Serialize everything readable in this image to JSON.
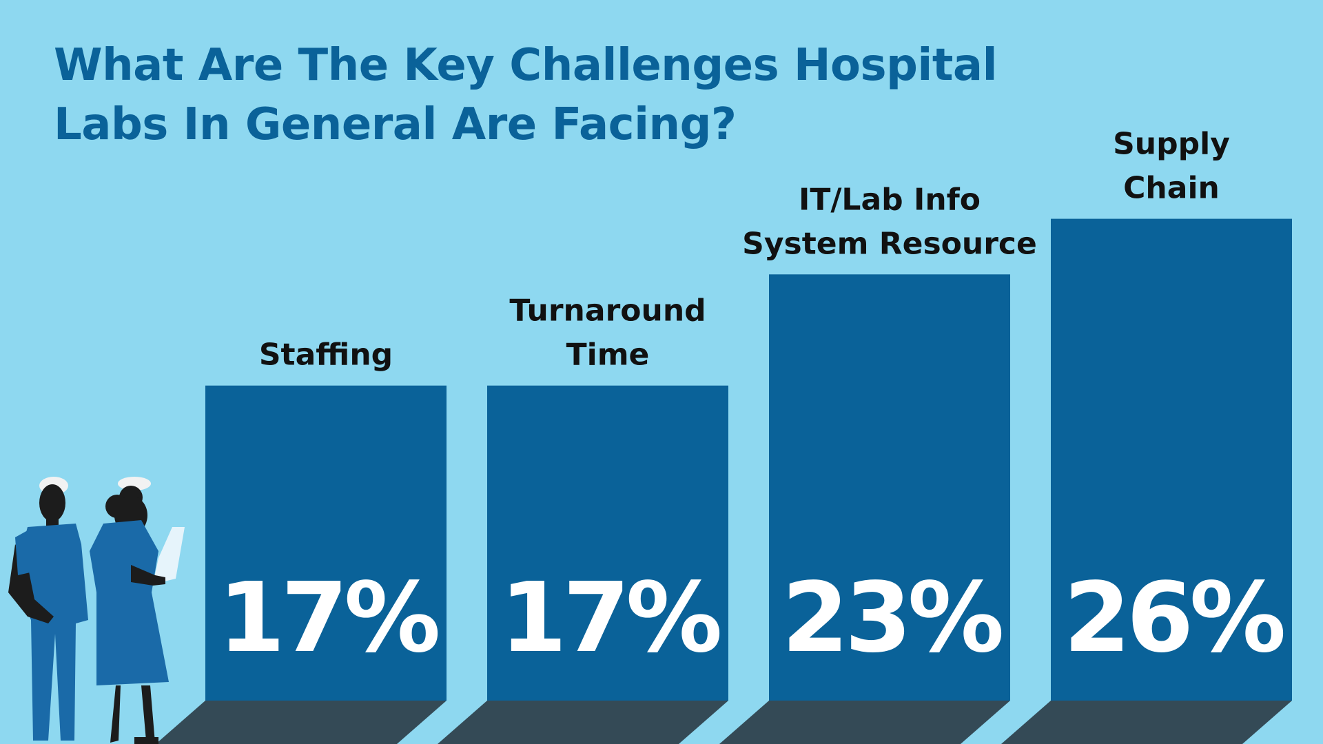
{
  "title_lines": [
    "What Are The Key Challenges Hospital",
    "Labs In General Are Facing?"
  ],
  "colors": {
    "background": "#8ed8f0",
    "bar": "#0a6299",
    "title": "#0a6299",
    "bar_shadow": "#344a56",
    "label": "#111111",
    "value": "#ffffff",
    "figure_uniform": "#1a6aa8",
    "figure_skin": "#1c1c1c"
  },
  "illustration": {
    "icon": "two-nurses-figure-icon"
  },
  "chart_data": {
    "type": "bar",
    "title": "What Are The Key Challenges Hospital Labs In General Are Facing?",
    "categories": [
      [
        "Staffing"
      ],
      [
        "Turnaround",
        "Time"
      ],
      [
        "IT/Lab Info",
        "System Resource"
      ],
      [
        "Supply",
        "Chain"
      ]
    ],
    "values": [
      17,
      17,
      23,
      26
    ],
    "value_labels": [
      "17%",
      "17%",
      "23%",
      "26%"
    ],
    "xlabel": "",
    "ylabel": "",
    "grid": false,
    "legend": "none"
  }
}
